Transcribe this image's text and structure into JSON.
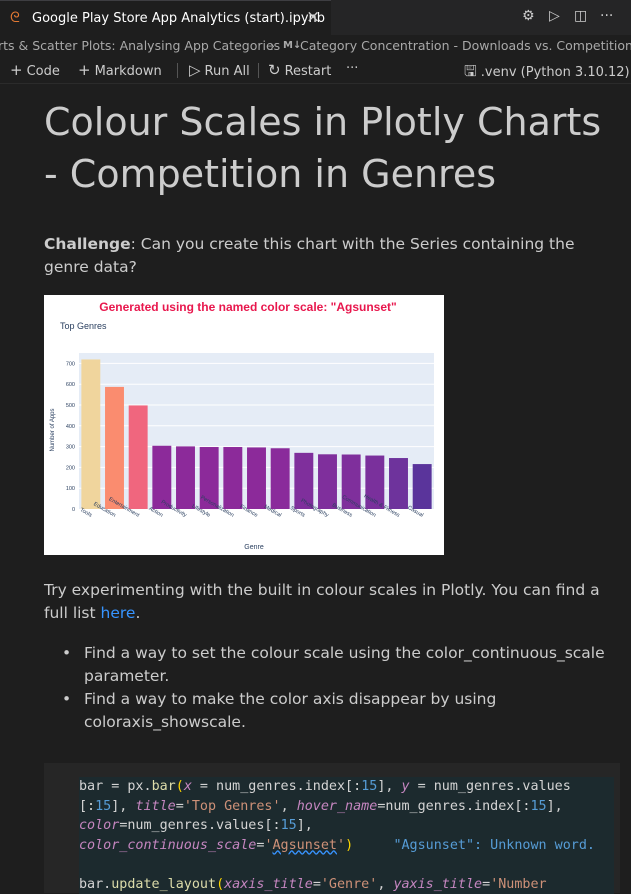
{
  "tab": {
    "title": "Google Play Store App Analytics (start).ipynb",
    "close": "×"
  },
  "tab_actions": {
    "settings": "⚙",
    "run": "▷",
    "split": "◫",
    "more": "···"
  },
  "breadcrumb": {
    "part1": "rts & Scatter Plots: Analysing App Categories",
    "sep": "›",
    "md_icon": "M↓",
    "part2": "Category Concentration - Downloads vs. Competition"
  },
  "toolbar": {
    "code": "Code",
    "markdown": "Markdown",
    "run_all": "Run All",
    "restart": "Restart",
    "more": "···",
    "kernel": ".venv (Python 3.10.12)"
  },
  "markdown": {
    "heading": "Colour Scales in Plotly Charts - Competition in Genres",
    "challenge_bold": "Challenge",
    "challenge_rest": ": Can you create this chart with the Series containing the genre data?",
    "try_text": "Try experimenting with the built in colour scales in Plotly. You can find a full list ",
    "here_link": "here",
    "period": ".",
    "bullets": [
      "Find a way to set the colour scale using the color_continuous_scale parameter.",
      "Find a way to make the color axis disappear by using coloraxis_showscale."
    ]
  },
  "chart_data": {
    "type": "bar",
    "banner": "Generated using the named color scale: \"Agsunset\"",
    "title": "Top Genres",
    "xlabel": "Genre",
    "ylabel": "Number of Apps",
    "ylim": [
      0,
      750
    ],
    "yticks": [
      0,
      100,
      200,
      300,
      400,
      500,
      600,
      700
    ],
    "categories": [
      "Tools",
      "Education",
      "Entertainment",
      "Action",
      "Productivity",
      "Lifestyle",
      "Personalization",
      "Finance",
      "Medical",
      "Sports",
      "Photography",
      "Business",
      "Communication",
      "Health & Fitness",
      "Casual"
    ],
    "values": [
      719,
      587,
      498,
      304,
      301,
      298,
      298,
      296,
      292,
      270,
      263,
      262,
      257,
      245,
      216
    ],
    "colors": [
      "#f0d59d",
      "#fa8c6f",
      "#f0667e",
      "#8c2a9a",
      "#8c2a9a",
      "#8c2a9a",
      "#8c2a9a",
      "#8c2a9a",
      "#8a2b9b",
      "#7f2f9c",
      "#7f2f9c",
      "#7f2f9c",
      "#7a309c",
      "#6e339c",
      "#5a349b"
    ]
  },
  "code": {
    "warning": "\"Agsunset\": Unknown word."
  }
}
